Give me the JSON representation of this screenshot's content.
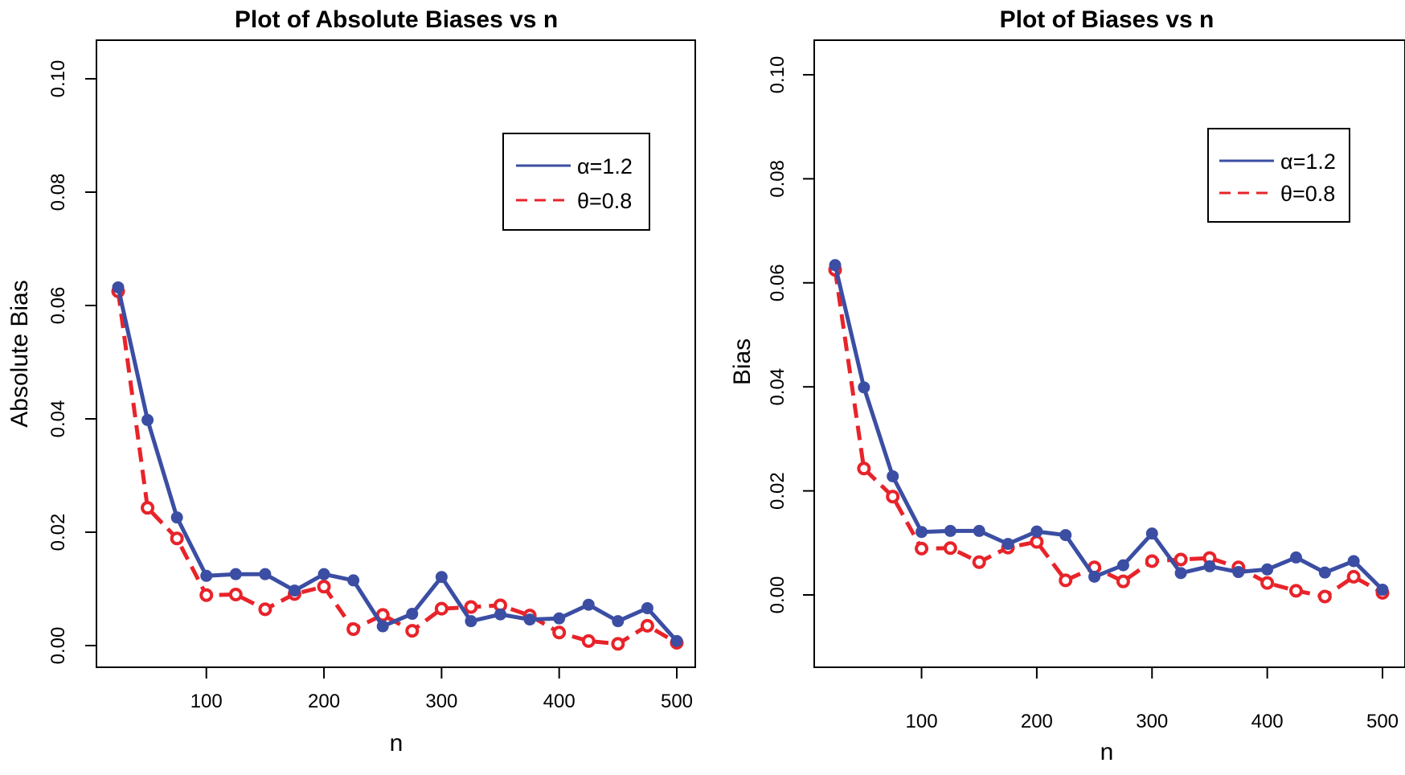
{
  "chart_data": [
    {
      "type": "line",
      "title": "Plot of Absolute Biases vs n",
      "xlabel": "n",
      "ylabel": "Absolute Bias",
      "xlim": [
        25,
        500
      ],
      "ylim": [
        0,
        0.1
      ],
      "xticks": [
        100,
        200,
        300,
        400,
        500
      ],
      "xtick_labels": [
        "100",
        "200",
        "300",
        "400",
        "500"
      ],
      "yticks": [
        0,
        0.02,
        0.04,
        0.06,
        0.08,
        0.1
      ],
      "ytick_labels": [
        "0.00",
        "0.02",
        "0.04",
        "0.06",
        "0.08",
        "0.10"
      ],
      "legend_position": "top-right",
      "x": [
        25,
        50,
        75,
        100,
        125,
        150,
        175,
        200,
        225,
        250,
        275,
        300,
        325,
        350,
        375,
        400,
        425,
        450,
        475,
        500
      ],
      "series": [
        {
          "name": "α=1.2",
          "color": "#3b4ea3",
          "style": "solid",
          "values": [
            0.0632,
            0.0398,
            0.0226,
            0.0123,
            0.0126,
            0.0126,
            0.0097,
            0.0126,
            0.0115,
            0.0034,
            0.0056,
            0.0121,
            0.0043,
            0.0055,
            0.0046,
            0.0048,
            0.0072,
            0.0043,
            0.0066,
            0.0008
          ]
        },
        {
          "name": "θ=0.8",
          "color": "#e8232a",
          "style": "dashed",
          "values": [
            0.0625,
            0.0243,
            0.0189,
            0.0089,
            0.009,
            0.0064,
            0.0091,
            0.0104,
            0.0029,
            0.0054,
            0.0026,
            0.0065,
            0.0068,
            0.0071,
            0.0053,
            0.0023,
            0.0008,
            0.0003,
            0.0035,
            0.0005
          ]
        }
      ]
    },
    {
      "type": "line",
      "title": "Plot of Biases vs n",
      "xlabel": "n",
      "ylabel": "Bias",
      "xlim": [
        25,
        500
      ],
      "ylim": [
        -0.012,
        0.1
      ],
      "xticks": [
        100,
        200,
        300,
        400,
        500
      ],
      "xtick_labels": [
        "100",
        "200",
        "300",
        "400",
        "500"
      ],
      "yticks": [
        0,
        0.02,
        0.04,
        0.06,
        0.08,
        0.1
      ],
      "ytick_labels": [
        "0.00",
        "0.02",
        "0.04",
        "0.06",
        "0.08",
        "0.10"
      ],
      "legend_position": "top-right",
      "x": [
        25,
        50,
        75,
        100,
        125,
        150,
        175,
        200,
        225,
        250,
        275,
        300,
        325,
        350,
        375,
        400,
        425,
        450,
        475,
        500
      ],
      "series": [
        {
          "name": "α=1.2",
          "color": "#3b4ea3",
          "style": "solid",
          "values": [
            0.0634,
            0.0399,
            0.0228,
            0.0121,
            0.0123,
            0.0123,
            0.0098,
            0.0122,
            0.0115,
            0.0035,
            0.0057,
            0.0118,
            0.0042,
            0.0055,
            0.0044,
            0.0049,
            0.0072,
            0.0043,
            0.0065,
            0.001
          ]
        },
        {
          "name": "θ=0.8",
          "color": "#e8232a",
          "style": "dashed",
          "values": [
            0.0625,
            0.0243,
            0.0189,
            0.0089,
            0.009,
            0.0063,
            0.0091,
            0.0102,
            0.0028,
            0.0053,
            0.0026,
            0.0065,
            0.0068,
            0.0071,
            0.0053,
            0.0023,
            0.0008,
            -0.0003,
            0.0035,
            0.0004
          ]
        }
      ]
    }
  ]
}
